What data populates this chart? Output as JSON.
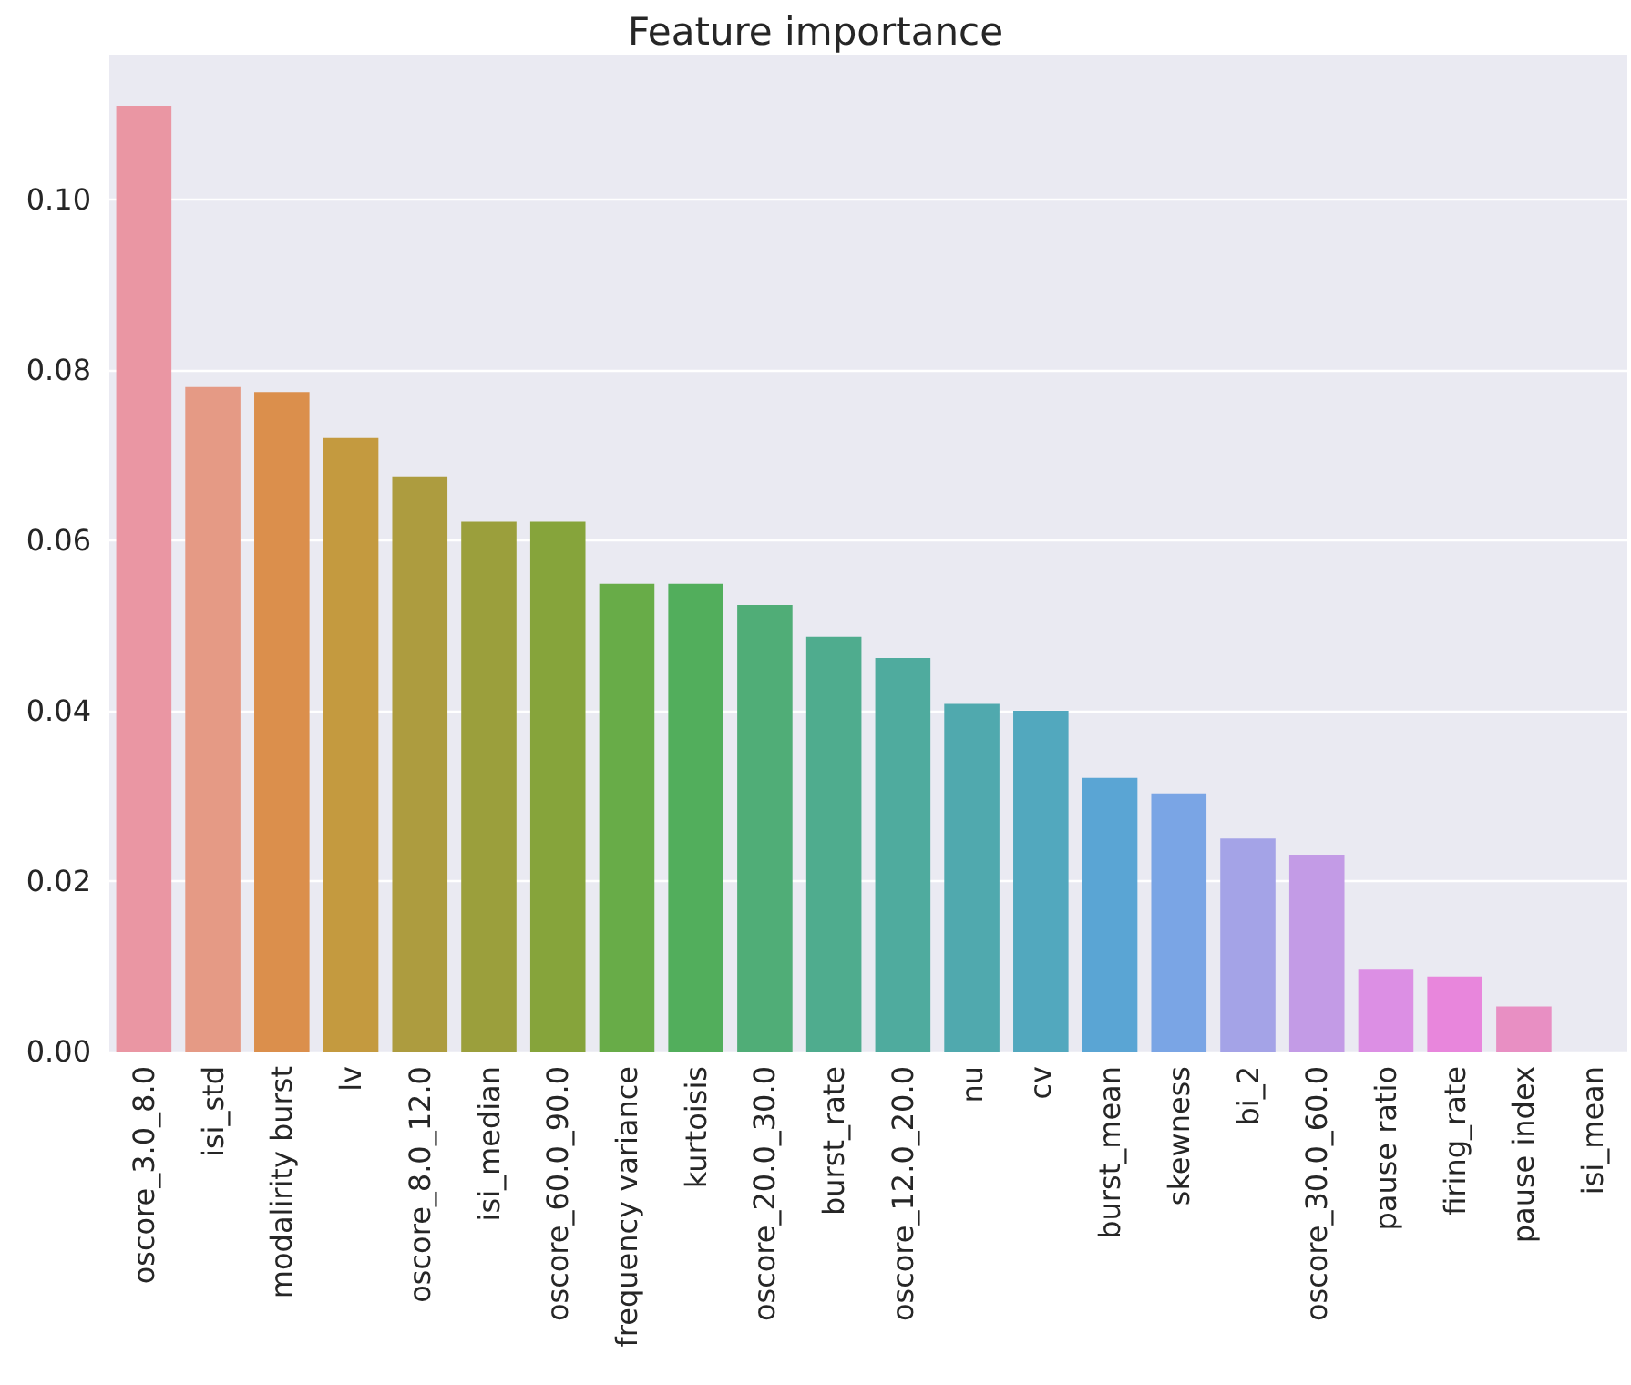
{
  "chart_data": {
    "type": "bar",
    "title": "Feature importance",
    "categories": [
      "oscore_3.0_8.0",
      "isi_std",
      "modalirity burst",
      "lv",
      "oscore_8.0_12.0",
      "isi_median",
      "oscore_60.0_90.0",
      "frequency variance",
      "kurtoisis",
      "oscore_20.0_30.0",
      "burst_rate",
      "oscore_12.0_20.0",
      "nu",
      "cv",
      "burst_mean",
      "skewness",
      "bi_2",
      "oscore_30.0_60.0",
      "pause ratio",
      "firing_rate",
      "pause index",
      "isi_mean"
    ],
    "values": [
      0.111,
      0.078,
      0.0774,
      0.072,
      0.0675,
      0.0622,
      0.0622,
      0.0549,
      0.0549,
      0.0524,
      0.0487,
      0.0462,
      0.0408,
      0.04,
      0.0321,
      0.0303,
      0.025,
      0.0231,
      0.0096,
      0.0088,
      0.0053,
      0
    ],
    "colors": [
      "#ea96a3",
      "#e59a85",
      "#db8f4c",
      "#c49a3f",
      "#ad9c3f",
      "#9b9f3c",
      "#86a43b",
      "#68ac48",
      "#52ae5c",
      "#50ad77",
      "#4fac8e",
      "#4fab9e",
      "#50a9ae",
      "#52a8be",
      "#5aa5d4",
      "#7aa5e5",
      "#a4a3e7",
      "#c39be6",
      "#dc8fe4",
      "#e886dc",
      "#e88fc3",
      "#e995b5"
    ],
    "ylim": [
      0,
      0.117
    ],
    "yticks": [
      {
        "value": 0,
        "label": "0.00"
      },
      {
        "value": 0.02,
        "label": "0.02"
      },
      {
        "value": 0.04,
        "label": "0.04"
      },
      {
        "value": 0.06,
        "label": "0.06"
      },
      {
        "value": 0.08,
        "label": "0.08"
      },
      {
        "value": 0.1,
        "label": "0.10"
      }
    ],
    "grid": "y"
  }
}
